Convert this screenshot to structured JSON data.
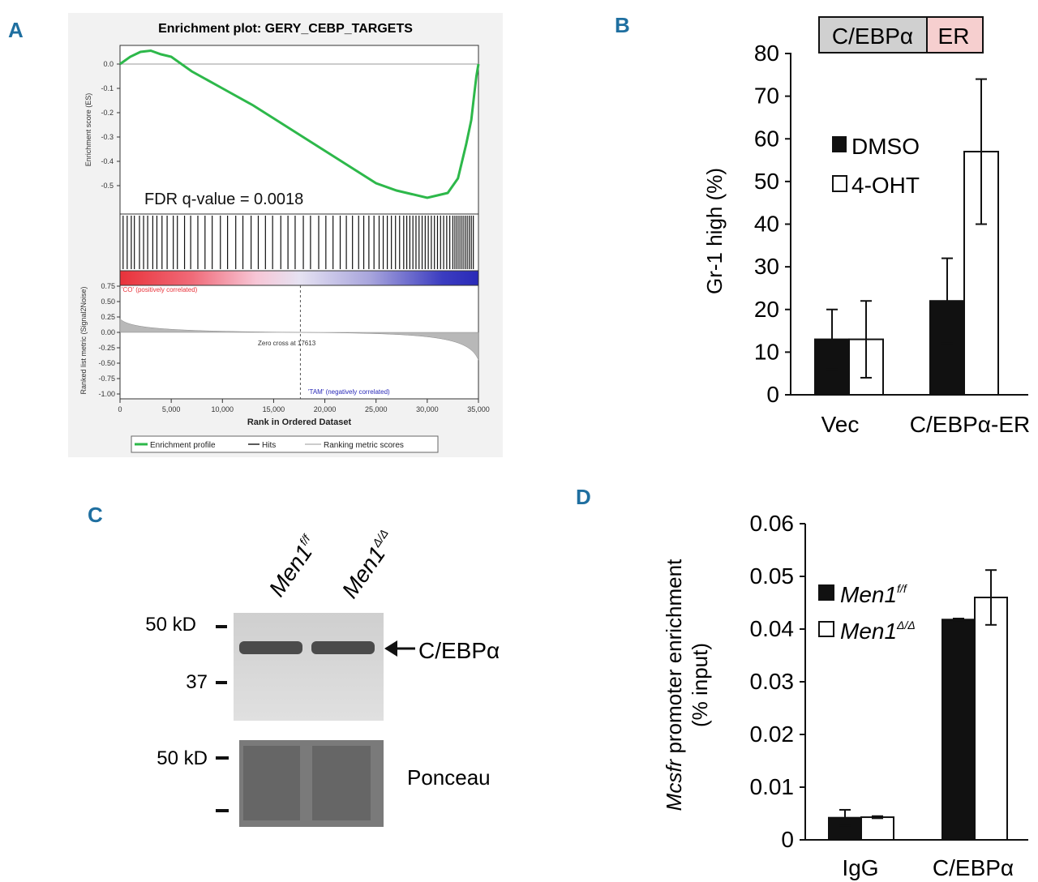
{
  "panel_labels": {
    "a": "A",
    "b": "B",
    "c": "C",
    "d": "D"
  },
  "colors": {
    "accent": "#1f6fa0",
    "gsea_line": "#2db84a",
    "er_box": "#f6cfcf",
    "cebp_box": "#d0d0d0"
  },
  "chart_data": [
    {
      "panel": "A",
      "type": "line",
      "title": "Enrichment plot: GERY_CEBP_TARGETS",
      "ylabel_top": "Enrichment score (ES)",
      "ylabel_bottom": "Ranked list metric (Signal2Noise)",
      "xlabel": "Rank in Ordered Dataset",
      "annotation": "FDR q-value = 0.0018",
      "xticks": [
        "0",
        "5,000",
        "10,000",
        "15,000",
        "20,000",
        "25,000",
        "30,000",
        "35,000"
      ],
      "yticks_top": [
        "0.0",
        "-0.1",
        "-0.2",
        "-0.3",
        "-0.4",
        "-0.5"
      ],
      "yticks_bottom": [
        "0.75",
        "0.50",
        "0.25",
        "0.00",
        "-0.25",
        "-0.50",
        "-0.75",
        "-1.00"
      ],
      "xlim": [
        0,
        35000
      ],
      "ylim_top": [
        -0.57,
        0.06
      ],
      "ylim_bottom": [
        -1.0,
        0.75
      ],
      "x": [
        0,
        1000,
        2000,
        3000,
        4000,
        5000,
        7000,
        10000,
        13000,
        16000,
        19000,
        22000,
        25000,
        27000,
        28500,
        30000,
        31000,
        32000,
        33000,
        33800,
        34300,
        34600,
        34800,
        35000
      ],
      "es": [
        0.0,
        0.03,
        0.05,
        0.055,
        0.04,
        0.03,
        -0.03,
        -0.1,
        -0.17,
        -0.25,
        -0.33,
        -0.41,
        -0.49,
        -0.52,
        -0.535,
        -0.55,
        -0.54,
        -0.53,
        -0.47,
        -0.33,
        -0.23,
        -0.12,
        -0.05,
        0.0
      ],
      "hits": [
        300,
        700,
        1100,
        1400,
        1900,
        2300,
        2700,
        3200,
        3600,
        4100,
        4600,
        5200,
        5600,
        6300,
        6900,
        7600,
        8300,
        9000,
        9800,
        10500,
        11300,
        12000,
        12800,
        13500,
        14200,
        14900,
        15700,
        16400,
        17100,
        17900,
        18600,
        19400,
        20100,
        20800,
        21500,
        22100,
        22700,
        23300,
        23800,
        24300,
        24800,
        25300,
        25700,
        26100,
        26500,
        26900,
        27300,
        27700,
        28000,
        28300,
        28600,
        28900,
        29200,
        29500,
        29800,
        30100,
        30400,
        30700,
        31000,
        31300,
        31600,
        31900,
        32200,
        32500,
        32700,
        32900,
        33100,
        33300,
        33500,
        33700,
        33900,
        34100,
        34300,
        34500
      ],
      "zero_cross": 17613,
      "zero_cross_label": "Zero cross at 17613",
      "pos_label": "'CO' (positively correlated)",
      "neg_label": "'TAM' (negatively correlated)",
      "legend": [
        "Enrichment profile",
        "Hits",
        "Ranking metric scores"
      ]
    },
    {
      "panel": "B",
      "type": "bar",
      "construct_labels": [
        "C/EBPα",
        "ER"
      ],
      "ylabel": "Gr-1 high (%)",
      "categories": [
        "Vec",
        "C/EBPα-ER"
      ],
      "ylim": [
        0,
        80
      ],
      "yticks": [
        "0",
        "10",
        "20",
        "30",
        "40",
        "50",
        "60",
        "70",
        "80"
      ],
      "series": [
        {
          "name": "DMSO",
          "values": [
            13,
            22
          ],
          "errors": [
            7,
            10
          ]
        },
        {
          "name": "4-OHT",
          "values": [
            13,
            57
          ],
          "errors": [
            9,
            17
          ]
        }
      ],
      "legend": [
        "DMSO",
        "4-OHT"
      ]
    },
    {
      "panel": "D",
      "type": "bar",
      "ylabel_italic": "Mcsfr",
      "ylabel_rest": " promoter enrichment",
      "ylabel_line2": "(% input)",
      "categories": [
        "IgG",
        "C/EBPα"
      ],
      "ylim": [
        0,
        0.06
      ],
      "yticks": [
        "0",
        "0.01",
        "0.02",
        "0.03",
        "0.04",
        "0.05",
        "0.06"
      ],
      "series": [
        {
          "name": "Men1 f/f",
          "values": [
            0.0042,
            0.0418
          ],
          "errors": [
            0.0015,
            0.0002
          ]
        },
        {
          "name": "Men1 Δ/Δ",
          "values": [
            0.0043,
            0.046
          ],
          "errors": [
            0.0002,
            0.0052
          ]
        }
      ],
      "legend": [
        {
          "base": "Men1",
          "sup": "f/f"
        },
        {
          "base": "Men1",
          "sup": "Δ/Δ"
        }
      ]
    }
  ],
  "western": {
    "lanes": [
      {
        "base": "Men1",
        "sup": "f/f"
      },
      {
        "base": "Men1",
        "sup": "Δ/Δ"
      }
    ],
    "markers_top": [
      "50 kD",
      "37"
    ],
    "marker_bottom": "50 kD",
    "band_label": "C/EBPα",
    "loading_label": "Ponceau"
  }
}
